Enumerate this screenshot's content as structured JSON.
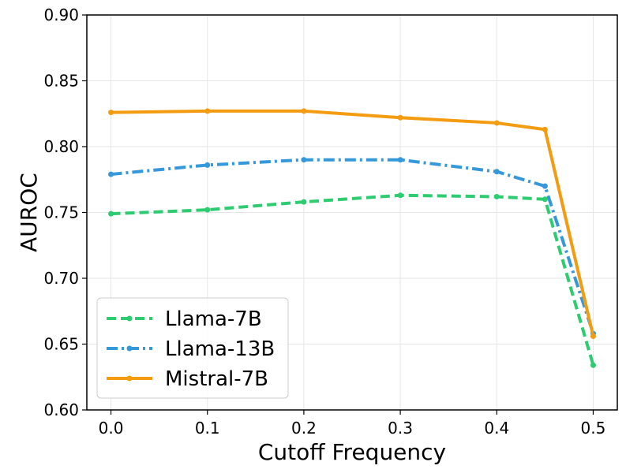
{
  "chart_data": {
    "type": "line",
    "title": "",
    "xlabel": "Cutoff Frequency",
    "ylabel": "AUROC",
    "xlim": [
      -0.025,
      0.525
    ],
    "ylim": [
      0.6,
      0.9
    ],
    "xticks": [
      0.0,
      0.1,
      0.2,
      0.3,
      0.4,
      0.5
    ],
    "xtick_labels": [
      "0.0",
      "0.1",
      "0.2",
      "0.3",
      "0.4",
      "0.5"
    ],
    "yticks": [
      0.6,
      0.65,
      0.7,
      0.75,
      0.8,
      0.85,
      0.9
    ],
    "ytick_labels": [
      "0.60",
      "0.65",
      "0.70",
      "0.75",
      "0.80",
      "0.85",
      "0.90"
    ],
    "grid": true,
    "legend_position": "bottom-left",
    "x": [
      0.0,
      0.1,
      0.2,
      0.3,
      0.4,
      0.45,
      0.5
    ],
    "series": [
      {
        "name": "Llama-7B",
        "color": "#2ecc71",
        "style": "dashed",
        "values": [
          0.749,
          0.752,
          0.758,
          0.763,
          0.762,
          0.76,
          0.634
        ]
      },
      {
        "name": "Llama-13B",
        "color": "#3498db",
        "style": "dashdot",
        "values": [
          0.779,
          0.786,
          0.79,
          0.79,
          0.781,
          0.77,
          0.658
        ]
      },
      {
        "name": "Mistral-7B",
        "color": "#f39c12",
        "style": "solid",
        "values": [
          0.826,
          0.827,
          0.827,
          0.822,
          0.818,
          0.813,
          0.656
        ]
      }
    ]
  }
}
